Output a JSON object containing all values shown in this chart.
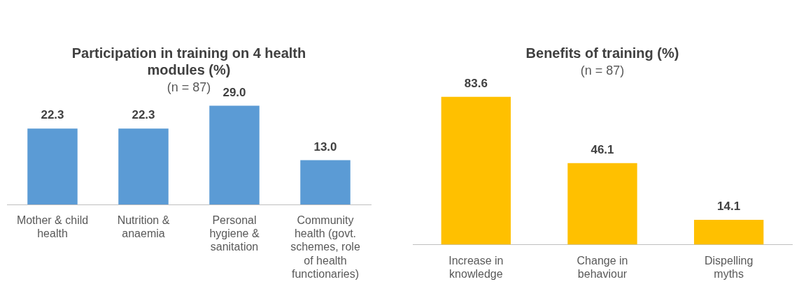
{
  "chart_data": [
    {
      "type": "bar",
      "title": "Participation in training on 4 health modules (%)",
      "subtitle": "(n = 87)",
      "categories": [
        "Mother & child health",
        "Nutrition & anaemia",
        "Personal hygiene & sanitation",
        "Community health (govt. schemes, role of health functionaries)"
      ],
      "values": [
        22.3,
        22.3,
        29.0,
        13.0
      ],
      "value_labels": [
        "22.3",
        "22.3",
        "29.0",
        "13.0"
      ],
      "color": "#5b9bd5",
      "tick_labels": "x",
      "grid": false,
      "legend": false
    },
    {
      "type": "bar",
      "title": "Benefits of training (%)",
      "subtitle": "(n = 87)",
      "categories": [
        "Increase in knowledge",
        "Change in behaviour",
        "Dispelling myths"
      ],
      "values": [
        83.6,
        46.1,
        14.1
      ],
      "color": "#ffc000",
      "tick_labels": "x",
      "data_labels": true,
      "grid": false,
      "legend": false
    }
  ]
}
